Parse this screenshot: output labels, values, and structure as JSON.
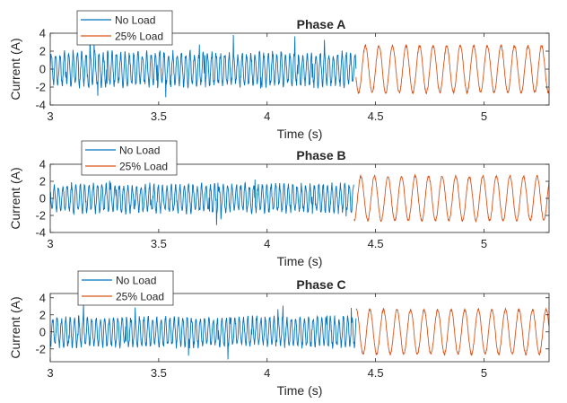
{
  "chart_data": [
    {
      "type": "line",
      "title": "Phase A",
      "xlabel": "Time (s)",
      "ylabel": "Current (A)",
      "xlim": [
        3,
        5.3
      ],
      "ylim": [
        -4,
        4
      ],
      "xticks": [
        "3",
        "3.5",
        "4",
        "4.5",
        "5"
      ],
      "xtick_values": [
        3,
        3.5,
        4,
        4.5,
        5
      ],
      "yticks": [
        "-4",
        "-2",
        "0",
        "2",
        "4"
      ],
      "ytick_values": [
        -4,
        -2,
        0,
        2,
        4
      ],
      "legend_position": "top-left",
      "series": [
        {
          "name": "No Load",
          "color": "#0072BD",
          "t_start": 3.0,
          "t_end": 4.41,
          "amplitude": 1.7,
          "frequency_hz": 50,
          "noise": 0.45
        },
        {
          "name": "25% Load",
          "color": "#D95319",
          "t_start": 4.41,
          "t_end": 5.3,
          "amplitude": 2.6,
          "frequency_hz": 16,
          "noise": 0.15
        }
      ]
    },
    {
      "type": "line",
      "title": "Phase B",
      "xlabel": "Time (s)",
      "ylabel": "Current (A)",
      "xlim": [
        3,
        5.3
      ],
      "ylim": [
        -4,
        4
      ],
      "xticks": [
        "3",
        "3.5",
        "4",
        "4.5",
        "5"
      ],
      "xtick_values": [
        3,
        3.5,
        4,
        4.5,
        5
      ],
      "yticks": [
        "-4",
        "-2",
        "0",
        "2",
        "4"
      ],
      "ytick_values": [
        -4,
        -2,
        0,
        2,
        4
      ],
      "legend_position": "top-left",
      "series": [
        {
          "name": "No Load",
          "color": "#0072BD",
          "t_start": 3.0,
          "t_end": 4.4,
          "amplitude": 1.5,
          "frequency_hz": 50,
          "noise": 0.4
        },
        {
          "name": "25% Load",
          "color": "#D95319",
          "t_start": 4.4,
          "t_end": 5.3,
          "amplitude": 2.6,
          "frequency_hz": 16,
          "noise": 0.15
        }
      ]
    },
    {
      "type": "line",
      "title": "Phase C",
      "xlabel": "Time (s)",
      "ylabel": "Current (A)",
      "xlim": [
        3,
        5.3
      ],
      "ylim": [
        -3.5,
        4.5
      ],
      "xticks": [
        "3",
        "3.5",
        "4",
        "4.5",
        "5"
      ],
      "xtick_values": [
        3,
        3.5,
        4,
        4.5,
        5
      ],
      "yticks": [
        "-2",
        "0",
        "2",
        "4"
      ],
      "ytick_values": [
        -2,
        0,
        2,
        4
      ],
      "legend_position": "top-left",
      "series": [
        {
          "name": "No Load",
          "color": "#0072BD",
          "t_start": 3.0,
          "t_end": 4.41,
          "amplitude": 1.6,
          "frequency_hz": 50,
          "noise": 0.4
        },
        {
          "name": "25% Load",
          "color": "#D95319",
          "t_start": 4.41,
          "t_end": 5.3,
          "amplitude": 2.6,
          "frequency_hz": 16,
          "noise": 0.15
        }
      ]
    }
  ]
}
